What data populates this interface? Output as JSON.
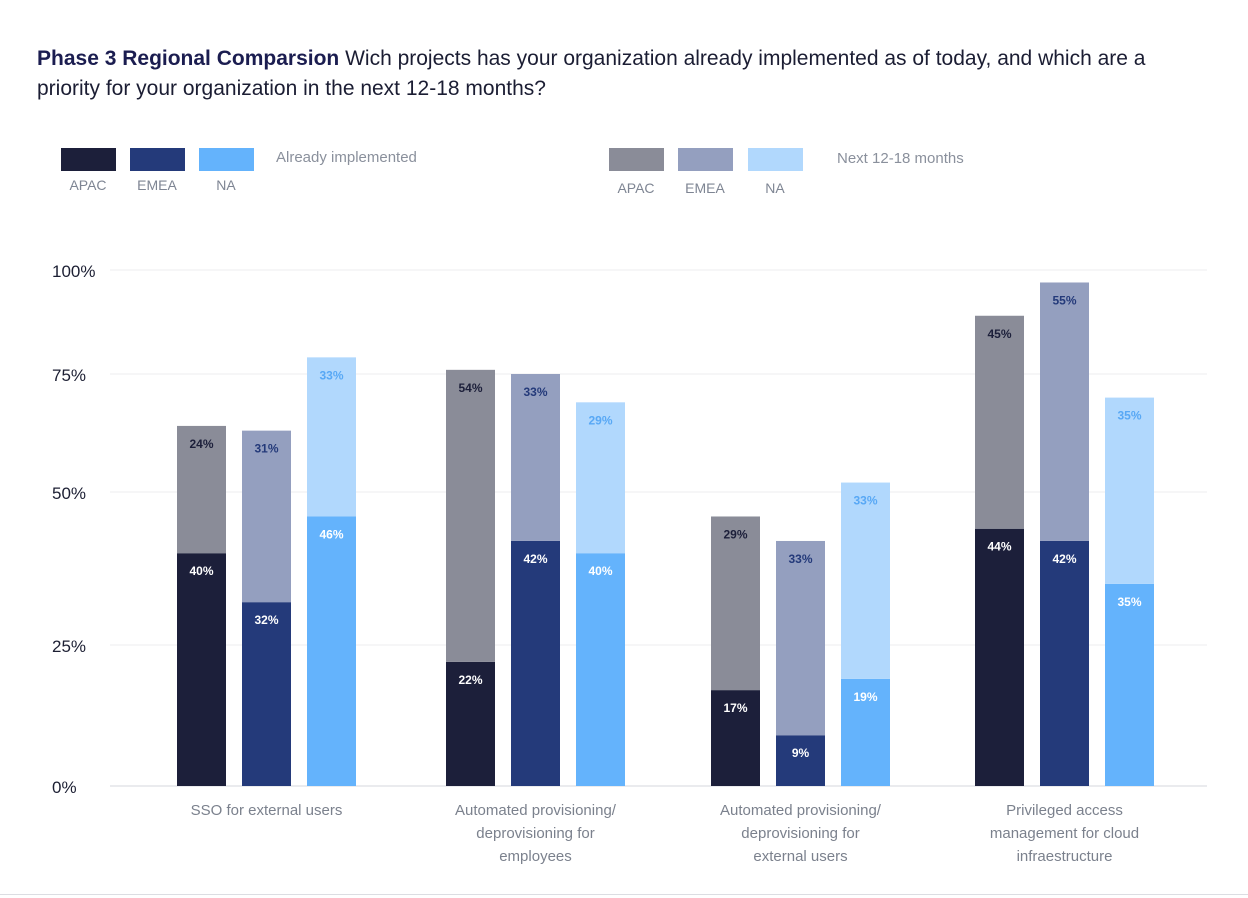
{
  "title_bold": "Phase 3 Regional Comparsion",
  "title_rest": " Wich projects has your organization already implemented as of today, and which are a priority for your organization in the next 12-18 months?",
  "legend": {
    "implemented": {
      "caption": "Already implemented",
      "items": [
        {
          "label": "APAC",
          "color": "#1c1f3a"
        },
        {
          "label": "EMEA",
          "color": "#243a7a"
        },
        {
          "label": "NA",
          "color": "#64b3fc"
        }
      ]
    },
    "next": {
      "caption": "Next 12-18 months",
      "items": [
        {
          "label": "APAC",
          "color": "#8a8c98"
        },
        {
          "label": "EMEA",
          "color": "#949fbf"
        },
        {
          "label": "NA",
          "color": "#b1d8fd"
        }
      ]
    }
  },
  "chart_data": {
    "type": "bar",
    "stacked": true,
    "title": "Phase 3 Regional Comparsion",
    "categories": [
      "SSO for external users",
      "Automated provisioning/ deprovisioning for employees",
      "Automated provisioning/ deprovisioning for external users",
      "Privileged access management for cloud infraestructure"
    ],
    "category_lines": [
      [
        "SSO for external users"
      ],
      [
        "Automated provisioning/",
        "deprovisioning for",
        "employees"
      ],
      [
        "Automated provisioning/",
        "deprovisioning for",
        "external users"
      ],
      [
        "Privileged access",
        "management for cloud",
        "infraestructure"
      ]
    ],
    "regions": [
      "APAC",
      "EMEA",
      "NA"
    ],
    "implemented": {
      "APAC": [
        40,
        22,
        17,
        44
      ],
      "EMEA": [
        32,
        42,
        9,
        42
      ],
      "NA": [
        46,
        40,
        19,
        35
      ]
    },
    "next_12_18_months": {
      "APAC": [
        24,
        54,
        29,
        45
      ],
      "EMEA": [
        31,
        33,
        33,
        55
      ],
      "NA": [
        33,
        29,
        33,
        35
      ]
    },
    "value_labels": {
      "implemented": {
        "APAC": [
          "40%",
          "22%",
          "17%",
          "44%"
        ],
        "EMEA": [
          "32%",
          "42%",
          "9%",
          "42%"
        ],
        "NA": [
          "46%",
          "40%",
          "19%",
          "35%"
        ]
      },
      "next": {
        "APAC": [
          "24%",
          "54%",
          "29%",
          "45%"
        ],
        "EMEA": [
          "31%",
          "33%",
          "33%",
          "55%"
        ],
        "NA": [
          "33%",
          "29%",
          "33%",
          "35%"
        ]
      }
    },
    "y_ticks": [
      {
        "value": 0,
        "label": "0%"
      },
      {
        "value": 25,
        "label": "25%"
      },
      {
        "value": 50,
        "label": "50%"
      },
      {
        "value": 75,
        "label": "75%"
      },
      {
        "value": 100,
        "label": "100%"
      }
    ],
    "ylim": [
      0,
      100
    ],
    "grid": true,
    "colors": {
      "implemented": {
        "APAC": "#1c1f3a",
        "EMEA": "#243a7a",
        "NA": "#64b3fc"
      },
      "next": {
        "APAC": "#8a8c98",
        "EMEA": "#949fbf",
        "NA": "#b1d8fd"
      },
      "label_implemented": "#ffffff",
      "label_next": {
        "APAC": "#1c1f3a",
        "EMEA": "#243a7a",
        "NA": "#58a8f5"
      }
    }
  }
}
